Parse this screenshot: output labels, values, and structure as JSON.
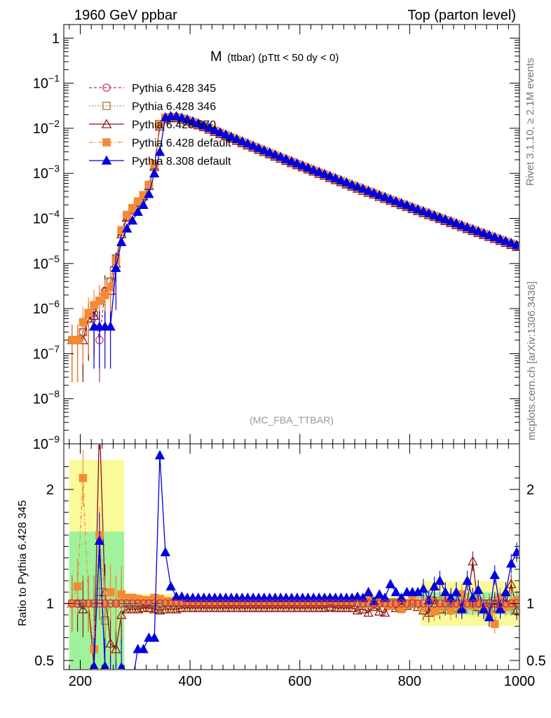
{
  "header": {
    "left": "1960 GeV ppbar",
    "right": "Top (parton level)"
  },
  "side_labels": {
    "rivet": "Rivet 3.1.10, ≥ 2.1M events",
    "mcplots": "mcplots.cern.ch [arXiv:1306.3436]"
  },
  "chart_data": {
    "type": "line",
    "title": {
      "main": "M",
      "sub": "(ttbar) (pTtt < 50 dy < 0)"
    },
    "annotation": "(MC_FBA_TTBAR)",
    "legend_position": "top-left",
    "upper": {
      "scale": "log",
      "ylim": [
        1e-09,
        2
      ],
      "xlim": [
        170,
        1000
      ],
      "y_tick_labels": [
        {
          "v": 1,
          "label": "1"
        },
        {
          "v": 0.1,
          "base": "10",
          "exp": "−1"
        },
        {
          "v": 0.01,
          "base": "10",
          "exp": "−2"
        },
        {
          "v": 0.001,
          "base": "10",
          "exp": "−3"
        },
        {
          "v": 0.0001,
          "base": "10",
          "exp": "−4"
        },
        {
          "v": 1e-05,
          "base": "10",
          "exp": "−5"
        },
        {
          "v": 1e-06,
          "base": "10",
          "exp": "−6"
        },
        {
          "v": 1e-07,
          "base": "10",
          "exp": "−7"
        },
        {
          "v": 1e-08,
          "base": "10",
          "exp": "−8"
        },
        {
          "v": 1e-09,
          "base": "10",
          "exp": "−9"
        }
      ]
    },
    "lower": {
      "ylabel": "Ratio to Pythia 6.428 345",
      "ylim": [
        0.42,
        2.4
      ],
      "y_tick_labels": [
        {
          "v": 0.5,
          "label": "0.5"
        },
        {
          "v": 1,
          "label": "1"
        },
        {
          "v": 2,
          "label": "2"
        }
      ]
    },
    "x_tick_labels": [
      {
        "v": 200,
        "label": "200"
      },
      {
        "v": 400,
        "label": "400"
      },
      {
        "v": 600,
        "label": "600"
      },
      {
        "v": 800,
        "label": "800"
      },
      {
        "v": 1000,
        "label": "1000"
      }
    ],
    "series": [
      {
        "name": "Pythia 6.428 345",
        "color": "#c0304a",
        "marker": "circle-open",
        "dash": "4,3"
      },
      {
        "name": "Pythia 6.428 346",
        "color": "#a0703a",
        "marker": "square-open",
        "dash": "1.5,2.5"
      },
      {
        "name": "Pythia 6.428 370",
        "color": "#8b1010",
        "marker": "triangle-open",
        "dash": ""
      },
      {
        "name": "Pythia 6.428 default",
        "color": "#f58a35",
        "marker": "square-filled",
        "dash": "6,3,1.5,3"
      },
      {
        "name": "Pythia 8.308 default",
        "color": "#0000e0",
        "marker": "triangle-filled",
        "dash": ""
      }
    ],
    "upper_values": {
      "x": [
        185,
        195,
        205,
        215,
        225,
        235,
        245,
        255,
        265,
        275,
        285,
        295,
        305,
        315,
        325,
        335,
        345,
        355,
        365,
        375,
        385,
        395,
        405,
        415,
        425,
        435,
        445,
        455,
        465,
        475,
        485,
        495,
        505,
        515,
        525,
        535,
        545,
        555,
        565,
        575,
        585,
        595,
        605,
        615,
        625,
        635,
        645,
        655,
        665,
        675,
        685,
        695,
        705,
        715,
        725,
        735,
        745,
        755,
        765,
        775,
        785,
        795,
        805,
        815,
        825,
        835,
        845,
        855,
        865,
        875,
        885,
        895,
        905,
        915,
        925,
        935,
        945,
        955,
        965,
        975,
        985,
        995
      ],
      "s0": [
        2e-07,
        2e-07,
        3e-07,
        6e-07,
        8e-07,
        2e-07,
        2.5e-06,
        4e-06,
        1.3e-05,
        5e-05,
        0.00011,
        0.00016,
        0.00023,
        0.00032,
        0.00055,
        0.0015,
        0.012,
        0.0168,
        0.0176,
        0.0175,
        0.0162,
        0.0149,
        0.0135,
        0.0122,
        0.011,
        0.00975,
        0.0087,
        0.00775,
        0.0069,
        0.00615,
        0.00548,
        0.00488,
        0.00435,
        0.00388,
        0.00347,
        0.0031,
        0.00276,
        0.00247,
        0.00221,
        0.00197,
        0.00176,
        0.00158,
        0.00142,
        0.00127,
        0.00114,
        0.00102,
        0.00092,
        0.00082,
        0.00074,
        0.00066,
        0.00059,
        0.00053,
        0.00048,
        0.00043,
        0.00039,
        0.00035,
        0.00031,
        0.000283,
        0.000255,
        0.00023,
        0.000207,
        0.000187,
        0.000169,
        0.000152,
        0.000137,
        0.000124,
        0.000112,
        0.000101,
        9.13e-05,
        8.25e-05,
        7.45e-05,
        6.73e-05,
        6.08e-05,
        5.5e-05,
        4.97e-05,
        4.49e-05,
        4.06e-05,
        3.67e-05,
        3.32e-05,
        3e-05,
        2.71e-05,
        2.45e-05
      ],
      "s1": [
        2e-07,
        2e-07,
        3e-07,
        6e-07,
        7e-07,
        1.5e-06,
        2e-06,
        4e-06,
        1.3e-05,
        5e-05,
        0.00011,
        0.00016,
        0.00023,
        0.00032,
        0.00055,
        0.0015,
        0.012,
        0.017,
        0.0178,
        0.0176,
        0.0163,
        0.015,
        0.0136,
        0.0123,
        0.0111,
        0.00983,
        0.00877,
        0.00781,
        0.00695,
        0.0062,
        0.00553,
        0.00492,
        0.00439,
        0.00391,
        0.0035,
        0.00312,
        0.00279,
        0.00249,
        0.00223,
        0.00199,
        0.00178,
        0.00159,
        0.00143,
        0.00128,
        0.00115,
        0.00103,
        0.00093,
        0.00083,
        0.00075,
        0.00067,
        0.0006,
        0.00054,
        0.00048,
        0.00043,
        0.00039,
        0.00035,
        0.00032,
        0.000285,
        0.000257,
        0.000232,
        0.000209,
        0.000188,
        0.00017,
        0.000153,
        0.000138,
        0.000125,
        0.000113,
        0.000102,
        9.2e-05,
        8.3e-05,
        7.5e-05,
        6.77e-05,
        6.12e-05,
        5.53e-05,
        5e-05,
        4.52e-05,
        4.09e-05,
        3.7e-05,
        3.34e-05,
        3.02e-05,
        2.73e-05,
        2.47e-05
      ],
      "s2": [
        2e-07,
        2e-07,
        2e-07,
        6e-07,
        7e-07,
        1.5e-06,
        2.5e-06,
        2.5e-06,
        1e-05,
        4.5e-05,
        0.000105,
        0.00015,
        0.00022,
        0.00031,
        0.00053,
        0.0014,
        0.011,
        0.016,
        0.0168,
        0.0167,
        0.0155,
        0.0143,
        0.013,
        0.0117,
        0.0106,
        0.00937,
        0.00836,
        0.00744,
        0.00663,
        0.00591,
        0.00527,
        0.00469,
        0.00418,
        0.00373,
        0.00334,
        0.00298,
        0.00266,
        0.00237,
        0.00212,
        0.0019,
        0.00169,
        0.00152,
        0.00137,
        0.00122,
        0.0011,
        0.00098,
        0.00089,
        0.00079,
        0.00071,
        0.00064,
        0.00057,
        0.00051,
        0.00046,
        0.00041,
        0.00037,
        0.00034,
        0.0003,
        0.000272,
        0.000245,
        0.000221,
        0.000199,
        0.00018,
        0.000162,
        0.000146,
        0.000132,
        0.000119,
        0.000108,
        9.7e-05,
        8.77e-05,
        7.92e-05,
        7.15e-05,
        6.46e-05,
        5.84e-05,
        5.28e-05,
        4.77e-05,
        4.31e-05,
        3.9e-05,
        3.52e-05,
        3.19e-05,
        2.88e-05,
        2.6e-05,
        2.35e-05
      ],
      "s3": [
        2e-07,
        2e-07,
        5e-07,
        8e-07,
        1.2e-06,
        1.5e-06,
        2e-06,
        3e-06,
        1.2e-05,
        5.5e-05,
        0.00012,
        0.00017,
        0.00024,
        0.00033,
        0.00056,
        0.0016,
        0.0125,
        0.0171,
        0.0179,
        0.0178,
        0.0165,
        0.0152,
        0.0138,
        0.0125,
        0.0112,
        0.00995,
        0.00888,
        0.00791,
        0.00704,
        0.00628,
        0.0056,
        0.00498,
        0.00444,
        0.00396,
        0.00354,
        0.00316,
        0.00282,
        0.00252,
        0.00225,
        0.00201,
        0.0018,
        0.00161,
        0.00145,
        0.0013,
        0.00116,
        0.00104,
        0.00094,
        0.00084,
        0.00076,
        0.00068,
        0.00061,
        0.00054,
        0.00049,
        0.00044,
        0.0004,
        0.00036,
        0.00032,
        0.000289,
        0.00026,
        0.000235,
        0.000212,
        0.000191,
        0.000172,
        0.000155,
        0.00014,
        0.000126,
        0.000114,
        0.000103,
        9.3e-05,
        8.4e-05,
        7.58e-05,
        6.85e-05,
        6.19e-05,
        5.6e-05,
        5.06e-05,
        4.57e-05,
        4.13e-05,
        3.74e-05,
        3.38e-05,
        3.05e-05,
        2.76e-05,
        2.5e-05
      ],
      "s4": [
        null,
        null,
        null,
        null,
        4e-07,
        4e-07,
        4e-07,
        4e-07,
        8e-06,
        3e-05,
        6e-05,
        9e-05,
        0.00014,
        0.0002,
        0.00035,
        0.001,
        0.003,
        0.0175,
        0.0186,
        0.0185,
        0.0171,
        0.0158,
        0.0143,
        0.0129,
        0.0116,
        0.0103,
        0.00918,
        0.00818,
        0.00728,
        0.00649,
        0.00579,
        0.00515,
        0.0046,
        0.0041,
        0.00366,
        0.00327,
        0.00292,
        0.00261,
        0.00233,
        0.00208,
        0.00186,
        0.00167,
        0.0015,
        0.00134,
        0.0012,
        0.00108,
        0.00097,
        0.00087,
        0.00078,
        0.0007,
        0.00063,
        0.00056,
        0.00051,
        0.00046,
        0.00041,
        0.00037,
        0.00033,
        0.000299,
        0.000269,
        0.000243,
        0.000219,
        0.000198,
        0.000178,
        0.00016,
        0.000145,
        0.000131,
        0.000118,
        0.000106,
        9.6e-05,
        8.68e-05,
        7.84e-05,
        7.08e-05,
        6.4e-05,
        5.78e-05,
        5.23e-05,
        4.72e-05,
        4.27e-05,
        3.86e-05,
        3.49e-05,
        3.16e-05,
        2.86e-05,
        2.58e-05
      ]
    },
    "ratio_values": {
      "x": [
        185,
        195,
        205,
        215,
        225,
        235,
        245,
        255,
        265,
        275,
        285,
        295,
        305,
        315,
        325,
        335,
        345,
        355,
        365,
        375,
        385,
        395,
        405,
        415,
        425,
        435,
        445,
        455,
        465,
        475,
        485,
        495,
        505,
        515,
        525,
        535,
        545,
        555,
        565,
        575,
        585,
        595,
        605,
        615,
        625,
        635,
        645,
        655,
        665,
        675,
        685,
        695,
        705,
        715,
        725,
        735,
        745,
        755,
        765,
        775,
        785,
        795,
        805,
        815,
        825,
        835,
        845,
        855,
        865,
        875,
        885,
        895,
        905,
        915,
        925,
        935,
        945,
        955,
        965,
        975,
        985,
        995
      ],
      "s1": [
        1,
        1,
        1,
        1,
        1,
        1.1,
        0.85,
        1,
        1,
        1,
        1,
        1,
        1,
        1,
        1,
        1,
        1,
        1.01,
        1.01,
        1.01,
        1.01,
        1.01,
        1.01,
        1.01,
        1.01,
        1.01,
        1.01,
        1.01,
        1.01,
        1.01,
        1.01,
        1.01,
        1.01,
        1.01,
        1.01,
        1.01,
        1.01,
        1.01,
        1.01,
        1.01,
        1.01,
        1.01,
        1.01,
        1.01,
        1.01,
        1.01,
        1.01,
        1.01,
        1.01,
        1.01,
        1.01,
        1.01,
        1.01,
        1.01,
        1.01,
        1.01,
        1.01,
        1.01,
        1.01,
        1.01,
        1.01,
        1.0,
        1.0,
        1.02,
        1.0,
        0.99,
        1.0,
        1.02,
        1.0,
        0.98,
        1.0,
        1.02,
        1.0,
        0.99,
        1.01,
        1.0,
        1.0,
        1.02,
        0.99,
        1.0,
        0.98,
        0.95
      ],
      "s2": [
        1,
        1,
        0.95,
        1.0,
        0.45,
        2.6,
        1.1,
        0.65,
        0.6,
        0.9,
        0.95,
        0.95,
        0.95,
        0.96,
        0.96,
        0.95,
        0.94,
        0.95,
        0.95,
        0.95,
        0.96,
        0.96,
        0.96,
        0.96,
        0.96,
        0.96,
        0.96,
        0.96,
        0.96,
        0.96,
        0.96,
        0.96,
        0.96,
        0.96,
        0.96,
        0.96,
        0.96,
        0.96,
        0.96,
        0.96,
        0.96,
        0.96,
        0.96,
        0.96,
        0.96,
        0.96,
        0.96,
        0.97,
        0.96,
        0.96,
        0.96,
        0.96,
        0.94,
        0.95,
        0.92,
        0.97,
        0.93,
        0.92,
        0.98,
        0.96,
        0.97,
        0.98,
        1.0,
        0.97,
        0.94,
        0.92,
        1.03,
        0.95,
        0.98,
        1.03,
        0.96,
        0.97,
        1.0,
        1.37,
        0.97,
        0.95,
        0.96,
        1.0,
        0.96,
        1.0,
        1.17,
        0.94
      ],
      "s3": [
        1,
        1.15,
        2.1,
        1.0,
        0.6,
        1.6,
        1.0,
        1.1,
        1.0,
        1.08,
        1.05,
        1.05,
        1.04,
        1.03,
        1.03,
        1.05,
        1.04,
        1.02,
        1.02,
        1.02,
        1.02,
        1.02,
        1.02,
        1.02,
        1.02,
        1.02,
        1.02,
        1.02,
        1.02,
        1.02,
        1.02,
        1.02,
        1.02,
        1.02,
        1.02,
        1.02,
        1.02,
        1.02,
        1.02,
        1.02,
        1.02,
        1.02,
        1.02,
        1.02,
        1.02,
        1.02,
        1.02,
        1.03,
        1.02,
        1.02,
        1.02,
        1.02,
        1.03,
        0.99,
        1.03,
        1.0,
        1.0,
        1.0,
        0.98,
        1.0,
        0.95,
        0.99,
        1.03,
        1.0,
        0.97,
        1.03,
        0.93,
        0.97,
        1.02,
        0.94,
        0.99,
        1.08,
        1.0,
        0.98,
        1.02,
        0.96,
        0.91,
        0.82,
        1.05,
        0.97,
        1.0,
        1.03
      ],
      "s4": [
        null,
        null,
        null,
        null,
        0.45,
        1.55,
        0.45,
        0.3,
        0.25,
        0.44,
        0.35,
        0.32,
        0.6,
        0.6,
        0.7,
        0.7,
        2.3,
        1.45,
        1.15,
        1.06,
        1.06,
        1.05,
        1.05,
        1.05,
        1.05,
        1.05,
        1.05,
        1.05,
        1.05,
        1.05,
        1.05,
        1.05,
        1.05,
        1.05,
        1.05,
        1.05,
        1.05,
        1.05,
        1.05,
        1.05,
        1.05,
        1.05,
        1.05,
        1.05,
        1.05,
        1.05,
        1.05,
        1.05,
        1.05,
        1.05,
        1.05,
        1.05,
        1.06,
        1.05,
        1.1,
        1.02,
        1.08,
        1.05,
        1.17,
        1.1,
        1.05,
        1.1,
        1.1,
        1.1,
        1.13,
        1.03,
        1.15,
        1.2,
        1.1,
        1.05,
        1.1,
        0.95,
        1.2,
        1.05,
        1.12,
        0.95,
        0.88,
        1.25,
        0.95,
        1.1,
        1.35,
        1.45
      ]
    }
  }
}
